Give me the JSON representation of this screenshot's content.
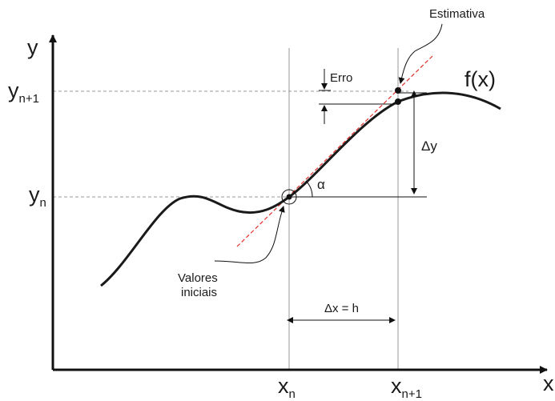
{
  "axes": {
    "x_label": "x",
    "y_label": "y"
  },
  "function_label": "f(x)",
  "ticks": {
    "xn": {
      "base": "x",
      "sub": "n"
    },
    "xn1": {
      "base": "x",
      "sub": "n+1"
    },
    "yn": {
      "base": "y",
      "sub": "n"
    },
    "yn1": {
      "base": "y",
      "sub": "n+1"
    }
  },
  "annotations": {
    "estimate": "Estimativa",
    "error": "Erro",
    "delta_y": "Δy",
    "delta_x": "Δx = h",
    "alpha": "α",
    "initial_line1": "Valores",
    "initial_line2": "iniciais"
  },
  "colors": {
    "curve": "#1a1a1a",
    "tangent": "#e0302a",
    "guide": "#9a9a9a",
    "axis": "#111111"
  }
}
